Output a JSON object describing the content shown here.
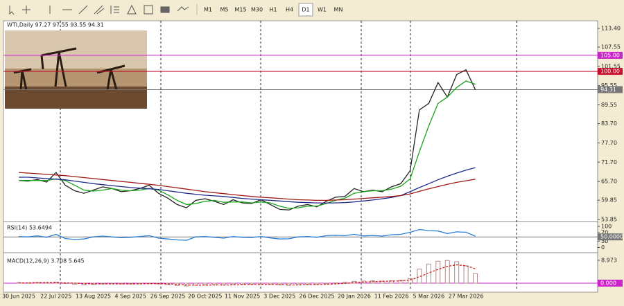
{
  "toolbar": {
    "timeframes": [
      "M1",
      "M5",
      "M15",
      "M30",
      "H1",
      "H4",
      "D1",
      "W1",
      "MN"
    ],
    "active": "D1"
  },
  "chart_data": [
    {
      "type": "line",
      "title": "WTI,Daily 97.27 97.55 93.55 94.31",
      "categories": [
        "30 Jun 2025",
        null,
        null,
        null,
        "22 Jul 2025",
        null,
        null,
        null,
        "13 Aug 2025",
        null,
        null,
        null,
        "4 Sep 2025",
        null,
        null,
        null,
        "26 Sep 2025",
        null,
        null,
        null,
        "20 Oct 2025",
        null,
        null,
        null,
        "11 Nov 2025",
        null,
        null,
        null,
        "3 Dec 2025",
        null,
        null,
        null,
        "26 Dec 2025",
        null,
        null,
        null,
        "20 Jan 2026",
        null,
        null,
        null,
        "11 Feb 2026",
        null,
        null,
        null,
        "5 Mar 2026",
        null,
        null,
        null,
        "27 Mar 2026",
        null
      ],
      "series": [
        {
          "color": "#222222",
          "values": [
            66,
            65.8,
            66.3,
            65.5,
            68.5,
            64.5,
            62.8,
            62,
            63,
            64,
            63.5,
            62.5,
            62.8,
            63.5,
            64.5,
            62,
            60.5,
            58.5,
            57.5,
            59.8,
            60.3,
            59.5,
            58.5,
            60,
            59,
            58.8,
            60,
            58.5,
            57,
            56.8,
            58,
            58.5,
            57.8,
            59.5,
            60.8,
            61,
            63.5,
            62.5,
            63,
            62.5,
            64,
            65,
            69,
            88,
            90,
            96.5,
            92,
            99,
            100.5,
            94.31
          ]
        },
        {
          "color": "#1aa31a",
          "values": [
            66,
            66,
            66,
            66,
            66.5,
            66,
            64.5,
            63,
            62.7,
            63,
            63.5,
            63,
            62.8,
            63,
            63.5,
            63,
            61.5,
            59.8,
            58.5,
            58.8,
            59.5,
            59.8,
            59.2,
            59.3,
            59.3,
            59,
            59.3,
            59,
            58,
            57.3,
            57.5,
            58,
            58,
            58.8,
            59.8,
            60.5,
            62,
            62.5,
            62.8,
            62.8,
            63.3,
            64.2,
            66.5,
            75,
            83,
            90,
            92,
            95,
            97,
            96
          ]
        },
        {
          "color": "#1c2a8c",
          "values": [
            67,
            67,
            66.8,
            66.6,
            66.4,
            66.2,
            65.8,
            65.4,
            65,
            64.7,
            64.4,
            64.1,
            63.8,
            63.6,
            63.4,
            63.2,
            62.8,
            62.4,
            62,
            61.7,
            61.4,
            61.2,
            61,
            60.7,
            60.4,
            60.2,
            60,
            59.8,
            59.6,
            59.4,
            59.2,
            59.1,
            59,
            59,
            59,
            59.1,
            59.3,
            59.6,
            59.9,
            60.3,
            60.7,
            61.3,
            62.5,
            63.8,
            65,
            66.2,
            67.3,
            68.3,
            69.2,
            70
          ]
        },
        {
          "color": "#a01818",
          "values": [
            68.5,
            68.3,
            68.1,
            67.9,
            67.7,
            67.5,
            67.2,
            66.9,
            66.6,
            66.3,
            66,
            65.7,
            65.4,
            65.1,
            64.8,
            64.5,
            64.1,
            63.7,
            63.3,
            62.9,
            62.5,
            62.2,
            61.9,
            61.6,
            61.3,
            61,
            60.8,
            60.6,
            60.4,
            60.2,
            60,
            59.9,
            59.8,
            59.8,
            59.9,
            60,
            60.2,
            60.4,
            60.6,
            60.8,
            61,
            61.3,
            61.8,
            62.6,
            63.4,
            64.1,
            64.8,
            65.4,
            65.9,
            66.4
          ]
        }
      ],
      "ylim": [
        53.63,
        115.77
      ],
      "yticks": [
        {
          "value": 113.4,
          "label": "113.40"
        },
        {
          "value": 107.55,
          "label": "107.55"
        },
        {
          "value": 101.55,
          "label": "101.55"
        },
        {
          "value": 95.55,
          "label": "95.55"
        },
        {
          "value": 89.55,
          "label": "89.55"
        },
        {
          "value": 83.7,
          "label": "83.70"
        },
        {
          "value": 77.7,
          "label": "77.70"
        },
        {
          "value": 71.7,
          "label": "71.70"
        },
        {
          "value": 65.7,
          "label": "65.70"
        },
        {
          "value": 59.85,
          "label": "59.85"
        },
        {
          "value": 53.85,
          "label": "53.85"
        }
      ],
      "levels": [
        {
          "value": 105,
          "label": "105.00",
          "color": "#cc22cc"
        },
        {
          "value": 100,
          "label": "100.00",
          "color": "#c8102e"
        },
        {
          "value": 94.31,
          "label": "94.31",
          "color": "#777777"
        }
      ]
    },
    {
      "type": "line",
      "title": "RSI(14) 53.6494",
      "color": "#2a7fd4",
      "values": [
        52,
        50,
        55,
        48,
        62,
        42,
        38,
        40,
        50,
        54,
        50,
        46,
        48,
        52,
        56,
        44,
        40,
        36,
        34,
        50,
        52,
        48,
        44,
        52,
        48,
        47,
        52,
        45,
        40,
        41,
        50,
        52,
        48,
        56,
        58,
        56,
        62,
        55,
        57,
        54,
        60,
        62,
        72,
        85,
        80,
        78,
        66,
        74,
        72,
        53.6494
      ],
      "ylim": [
        -15,
        113
      ],
      "yticks": [
        100,
        70,
        30,
        0
      ],
      "levels": [
        {
          "value": 50,
          "label": "50.0000",
          "color": "#777777"
        }
      ]
    },
    {
      "type": "bar",
      "title": "MACD(12,26,9) 3.708 5.645",
      "color": "#b08888",
      "signal_color": "#d02020",
      "values": [
        0.2,
        0.1,
        0.2,
        0.1,
        0.4,
        -0.1,
        -0.4,
        -0.6,
        -0.5,
        -0.3,
        -0.2,
        -0.3,
        -0.3,
        -0.2,
        0,
        -0.3,
        -0.6,
        -0.9,
        -1.1,
        -0.8,
        -0.6,
        -0.6,
        -0.7,
        -0.5,
        -0.5,
        -0.5,
        -0.4,
        -0.5,
        -0.7,
        -0.8,
        -0.6,
        -0.5,
        -0.5,
        -0.2,
        0.1,
        0.3,
        0.7,
        0.8,
        0.9,
        0.8,
        0.9,
        1.1,
        1.8,
        5.5,
        7.5,
        8.6,
        8.9,
        8.4,
        6.8,
        3.708
      ],
      "signal": [
        0.1,
        0.1,
        0.2,
        0.2,
        0.2,
        0.1,
        0,
        -0.2,
        -0.3,
        -0.3,
        -0.3,
        -0.3,
        -0.3,
        -0.3,
        -0.2,
        -0.2,
        -0.3,
        -0.5,
        -0.7,
        -0.8,
        -0.8,
        -0.7,
        -0.7,
        -0.7,
        -0.6,
        -0.6,
        -0.5,
        -0.5,
        -0.6,
        -0.7,
        -0.7,
        -0.6,
        -0.6,
        -0.5,
        -0.3,
        -0.1,
        0.2,
        0.4,
        0.6,
        0.7,
        0.8,
        0.9,
        1.2,
        2.5,
        4,
        5.4,
        6.6,
        7.2,
        6.8,
        5.645
      ],
      "ylim": [
        -2.45,
        11.4
      ],
      "yticks": [
        {
          "value": 8.973,
          "label": "8.973"
        }
      ],
      "levels": [
        {
          "value": 0,
          "label": "0.000",
          "color": "#cc22cc"
        }
      ]
    }
  ]
}
